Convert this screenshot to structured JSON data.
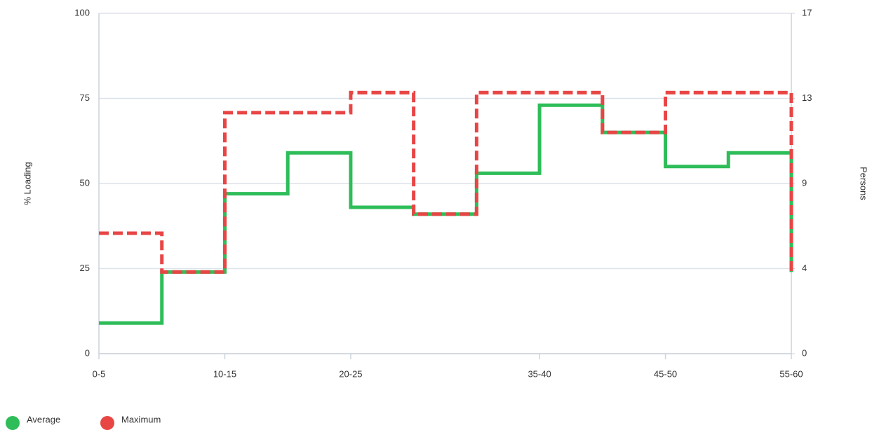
{
  "chart_data": {
    "type": "step",
    "categories": [
      "0-5",
      null,
      "10-15",
      null,
      "20-25",
      null,
      null,
      "35-40",
      null,
      "45-50",
      null,
      "55-60"
    ],
    "series": [
      {
        "name": "Average",
        "color": "#2ebd59",
        "values": [
          9,
          24,
          47,
          59,
          43,
          41,
          53,
          73,
          65,
          55,
          59,
          24
        ]
      },
      {
        "name": "Maximum",
        "color": "#e84545",
        "values": [
          35.4,
          24,
          70.8,
          70.8,
          76.7,
          41,
          76.7,
          76.7,
          65,
          76.7,
          76.7,
          24
        ]
      }
    ],
    "ylabel": "% Loading",
    "ylim": [
      0,
      100
    ],
    "yticks": [
      0,
      25,
      50,
      75,
      100
    ],
    "y2label": "Persons",
    "y2lim": [
      0,
      17
    ],
    "y2ticks": [
      0,
      {
        "value": 4.25,
        "label": "4"
      },
      {
        "value": 8.5,
        "label": "9"
      },
      {
        "value": 12.75,
        "label": "13"
      },
      17
    ],
    "grid": true,
    "legend": "bottom-left"
  }
}
